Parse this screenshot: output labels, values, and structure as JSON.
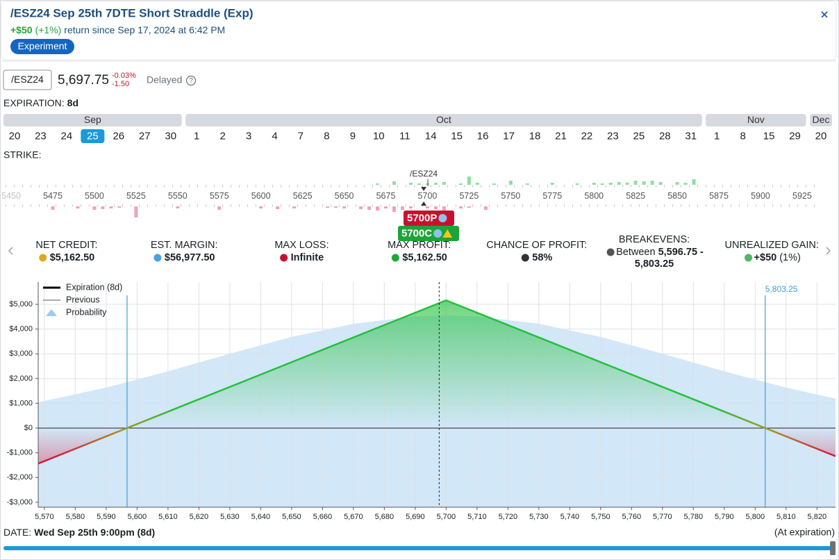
{
  "header": {
    "title": "/ESZ24 Sep 25th 7DTE Short Straddle (Exp)",
    "return_amount": "+$50",
    "return_pct": "(+1%)",
    "return_text": "return since Sep 17, 2024 at 6:42 PM",
    "tag": "Experiment"
  },
  "quote": {
    "symbol": "/ESZ24",
    "price": "5,697.75",
    "change_pct": "-0.03%",
    "change": "-1.50",
    "status": "Delayed",
    "help": "?"
  },
  "expiration": {
    "label": "EXPIRATION:",
    "value": "8d",
    "months": [
      {
        "name": "Sep",
        "days": [
          20,
          23,
          24,
          25,
          26,
          27,
          30
        ],
        "selected_day": 25
      },
      {
        "name": "Oct",
        "days": [
          1,
          2,
          3,
          4,
          7,
          8,
          9,
          10,
          11,
          14,
          15,
          16,
          17,
          18,
          21,
          22,
          23,
          25,
          28,
          31
        ]
      },
      {
        "name": "Nov",
        "days": [
          1,
          8,
          15,
          29
        ]
      },
      {
        "name": "Dec",
        "days": [
          20
        ]
      }
    ]
  },
  "strikes": {
    "label": "STRIKE:",
    "ticks": [
      5450,
      5475,
      5500,
      5525,
      5550,
      5575,
      5600,
      5625,
      5650,
      5675,
      5700,
      5725,
      5750,
      5775,
      5800,
      5825,
      5850,
      5875,
      5900,
      5925
    ],
    "underlying": "/ESZ24",
    "underlying_price": 5697.75,
    "call_bars": {
      "strikes": [
        5670,
        5680,
        5690,
        5695,
        5700,
        5705,
        5710,
        5720,
        5725,
        5730,
        5740,
        5750,
        5760,
        5775,
        5790,
        5800,
        5805,
        5810,
        5815,
        5820,
        5825,
        5830,
        5835,
        5840,
        5850,
        5855,
        5860
      ],
      "values": [
        2,
        5,
        3,
        2,
        2,
        3,
        4,
        2,
        12,
        3,
        2,
        6,
        2,
        3,
        2,
        3,
        2,
        3,
        4,
        3,
        6,
        5,
        6,
        4,
        4,
        3,
        8
      ]
    },
    "put_bars": {
      "strikes": [
        5475,
        5490,
        5500,
        5505,
        5510,
        5515,
        5525,
        5550,
        5575,
        5600,
        5610,
        5620,
        5640,
        5645,
        5650,
        5660,
        5665,
        5670,
        5675,
        5680,
        5685,
        5690,
        5700,
        5705,
        5710,
        5720,
        5725,
        5735
      ],
      "values": [
        5,
        3,
        5,
        4,
        3,
        2,
        16,
        3,
        5,
        3,
        4,
        3,
        2,
        2,
        3,
        4,
        5,
        6,
        3,
        8,
        5,
        3,
        3,
        4,
        6,
        3,
        2,
        5
      ]
    },
    "positions": [
      {
        "label": "5700P",
        "color": "#c8102e"
      },
      {
        "label": "5700C",
        "color": "#1ea33b"
      }
    ]
  },
  "stats": [
    {
      "label": "NET CREDIT:",
      "value": "$5,162.50"
    },
    {
      "label": "EST. MARGIN:",
      "value": "$56,977.50"
    },
    {
      "label": "MAX LOSS:",
      "value": "Infinite"
    },
    {
      "label": "MAX PROFIT:",
      "value": "$5,162.50"
    },
    {
      "label": "CHANCE OF PROFIT:",
      "value": "58%"
    },
    {
      "label": "BREAKEVENS:",
      "prefix": "Between",
      "value": "5,596.75 -",
      "value2": "5,803.25"
    },
    {
      "label": "UNREALIZED GAIN:",
      "value": "+$50",
      "value_suffix": "(1%)"
    }
  ],
  "chart_data": {
    "type": "line",
    "xlim": [
      5568,
      5826
    ],
    "ylim": [
      -3200,
      5900
    ],
    "xticks": [
      {
        "value": 5570,
        "label": "5,570"
      },
      {
        "value": 5580,
        "label": "5,580"
      },
      {
        "value": 5590,
        "label": "5,590"
      },
      {
        "value": 5600,
        "label": "5,600"
      },
      {
        "value": 5610,
        "label": "5,610"
      },
      {
        "value": 5620,
        "label": "5,620"
      },
      {
        "value": 5630,
        "label": "5,630"
      },
      {
        "value": 5640,
        "label": "5,640"
      },
      {
        "value": 5650,
        "label": "5,650"
      },
      {
        "value": 5660,
        "label": "5,660"
      },
      {
        "value": 5670,
        "label": "5,670"
      },
      {
        "value": 5680,
        "label": "5,680"
      },
      {
        "value": 5690,
        "label": "5,690"
      },
      {
        "value": 5700,
        "label": "5,700"
      },
      {
        "value": 5710,
        "label": "5,710"
      },
      {
        "value": 5720,
        "label": "5,720"
      },
      {
        "value": 5730,
        "label": "5,730"
      },
      {
        "value": 5740,
        "label": "5,740"
      },
      {
        "value": 5750,
        "label": "5,750"
      },
      {
        "value": 5760,
        "label": "5,760"
      },
      {
        "value": 5770,
        "label": "5,770"
      },
      {
        "value": 5780,
        "label": "5,780"
      },
      {
        "value": 5790,
        "label": "5,790"
      },
      {
        "value": 5800,
        "label": "5,800"
      },
      {
        "value": 5810,
        "label": "5,810"
      },
      {
        "value": 5820,
        "label": "5,820"
      }
    ],
    "yticks": [
      {
        "value": -3000,
        "label": "-$3,000"
      },
      {
        "value": -2000,
        "label": "-$2,000"
      },
      {
        "value": -1000,
        "label": "-$1,000"
      },
      {
        "value": 0,
        "label": "$0"
      },
      {
        "value": 1000,
        "label": "$1,000"
      },
      {
        "value": 2000,
        "label": "$2,000"
      },
      {
        "value": 3000,
        "label": "$3,000"
      },
      {
        "value": 4000,
        "label": "$4,000"
      },
      {
        "value": 5000,
        "label": "$5,000"
      }
    ],
    "grid": true,
    "legend": "upper left",
    "profit_color": "#22c03c",
    "loss_color": "#d8163a",
    "current_price": 5697.75,
    "breakevens": [
      5596.75,
      5803.25
    ],
    "breakeven_labels": [
      null,
      "5,803.25"
    ],
    "series": [
      {
        "name": "Expiration (8d)",
        "color": "#000000",
        "x": [
          5568,
          5596.75,
          5700,
          5803.25,
          5826
        ],
        "values": [
          -1437.5,
          0,
          5162.5,
          0,
          -1137.5
        ]
      },
      {
        "name": "Previous",
        "color": "#8a8f96",
        "x": [
          5568,
          5596.75,
          5700,
          5803.25,
          5826
        ],
        "values": [
          -1437.5,
          0,
          5162.5,
          0,
          -1137.5
        ]
      },
      {
        "name": "Probability",
        "color": "#9ccaf0",
        "x": [
          5568,
          5590,
          5610,
          5630,
          5650,
          5670,
          5690,
          5700,
          5710,
          5730,
          5750,
          5770,
          5790,
          5810,
          5826
        ],
        "values": [
          1040,
          1633,
          2291,
          3005,
          3681,
          4216,
          4512,
          4550,
          4512,
          4216,
          3681,
          3005,
          2291,
          1633,
          1185
        ]
      }
    ]
  },
  "footer": {
    "label": "DATE:",
    "date": "Wed Sep 25th 9:00pm (8d)",
    "note": "(At expiration)"
  }
}
